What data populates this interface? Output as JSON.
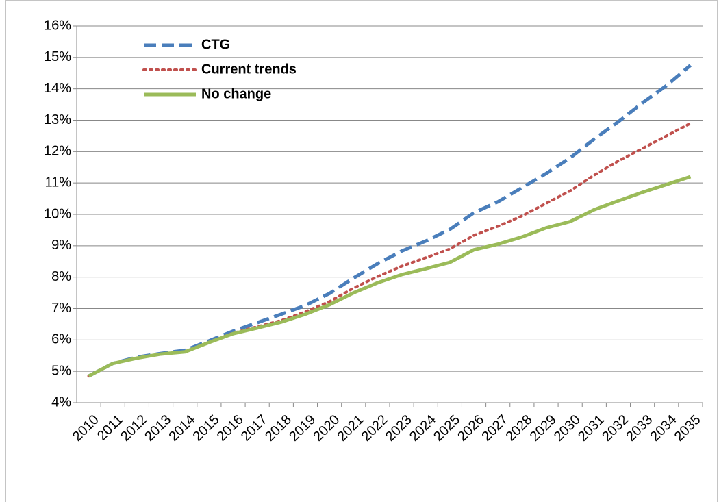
{
  "chart_data": {
    "type": "line",
    "categories": [
      "2010",
      "2011",
      "2012",
      "2013",
      "2014",
      "2015",
      "2016",
      "2017",
      "2018",
      "2019",
      "2020",
      "2021",
      "2022",
      "2023",
      "2024",
      "2025",
      "2026",
      "2027",
      "2028",
      "2029",
      "2030",
      "2031",
      "2032",
      "2033",
      "2034",
      "2035"
    ],
    "series": [
      {
        "name": "CTG",
        "color": "#4a7ebb",
        "dash": "dashed",
        "values": [
          4.85,
          5.25,
          5.45,
          5.57,
          5.67,
          5.97,
          6.28,
          6.55,
          6.82,
          7.1,
          7.48,
          7.97,
          8.43,
          8.83,
          9.15,
          9.52,
          10.05,
          10.4,
          10.85,
          11.3,
          11.8,
          12.4,
          12.95,
          13.55,
          14.1,
          14.75
        ]
      },
      {
        "name": "Current trends",
        "color": "#c0504d",
        "dash": "dotted",
        "values": [
          4.85,
          5.25,
          5.42,
          5.55,
          5.62,
          5.92,
          6.22,
          6.42,
          6.62,
          6.9,
          7.22,
          7.65,
          8.02,
          8.35,
          8.62,
          8.9,
          9.33,
          9.62,
          9.95,
          10.35,
          10.75,
          11.25,
          11.7,
          12.1,
          12.5,
          12.9
        ]
      },
      {
        "name": "No change",
        "color": "#9bbb59",
        "dash": "solid",
        "values": [
          4.85,
          5.25,
          5.42,
          5.55,
          5.62,
          5.92,
          6.2,
          6.38,
          6.57,
          6.82,
          7.12,
          7.5,
          7.82,
          8.08,
          8.27,
          8.47,
          8.87,
          9.05,
          9.28,
          9.57,
          9.77,
          10.15,
          10.43,
          10.7,
          10.95,
          11.2
        ]
      }
    ],
    "ylim": [
      4,
      16
    ],
    "yticks": [
      {
        "value": 4,
        "label": "4%"
      },
      {
        "value": 5,
        "label": "5%"
      },
      {
        "value": 6,
        "label": "6%"
      },
      {
        "value": 7,
        "label": "7%"
      },
      {
        "value": 8,
        "label": "8%"
      },
      {
        "value": 9,
        "label": "9%"
      },
      {
        "value": 10,
        "label": "10%"
      },
      {
        "value": 11,
        "label": "11%"
      },
      {
        "value": 12,
        "label": "12%"
      },
      {
        "value": 13,
        "label": "13%"
      },
      {
        "value": 14,
        "label": "14%"
      },
      {
        "value": 15,
        "label": "15%"
      },
      {
        "value": 16,
        "label": "16%"
      }
    ],
    "grid": true,
    "legend": "top-left"
  }
}
